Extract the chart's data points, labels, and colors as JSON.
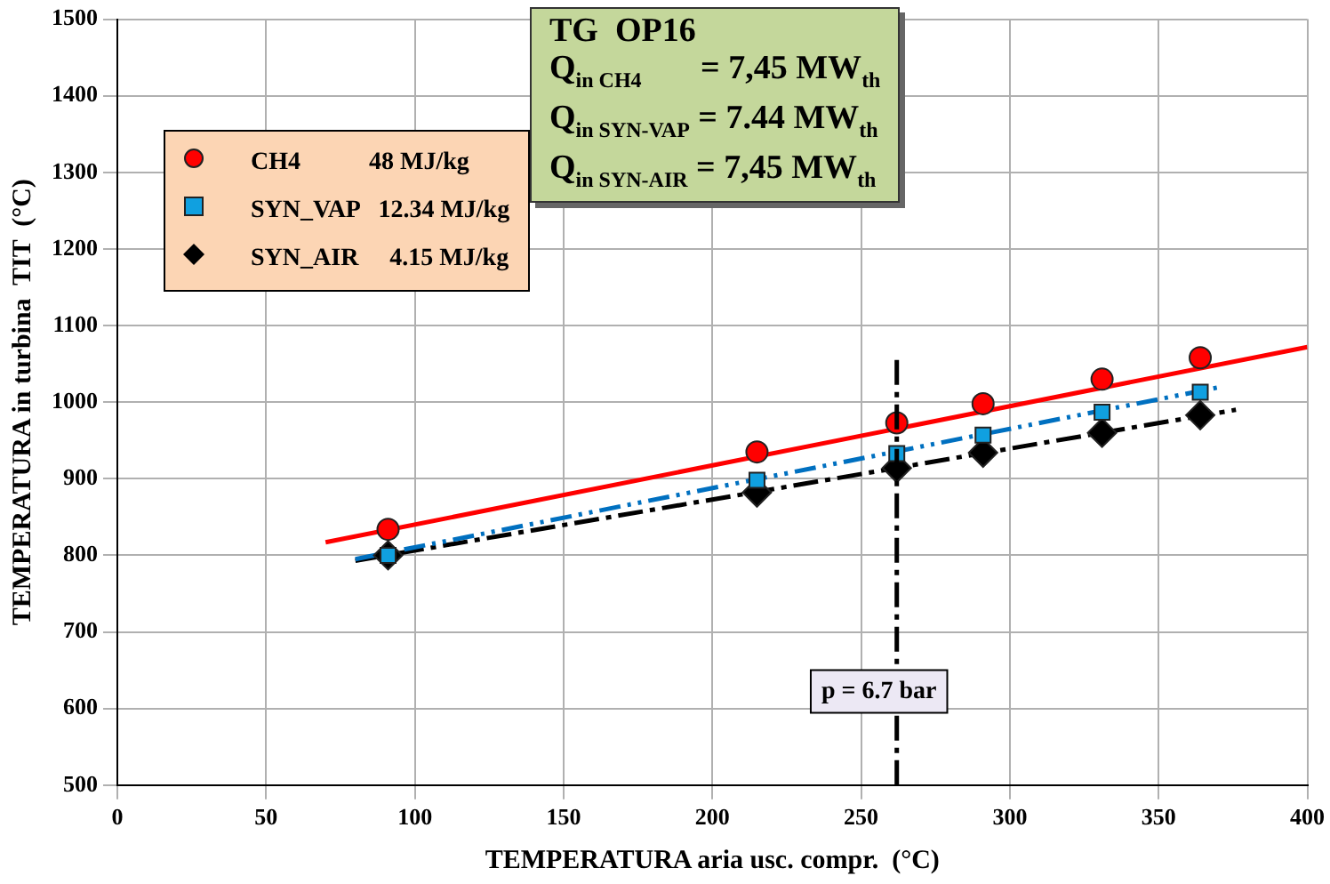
{
  "chart_data": {
    "type": "scatter",
    "xlabel": "TEMPERATURA aria usc. compr.  (°C)",
    "ylabel": "TEMPERATURA in turbina  TIT  (°C)",
    "xlim": [
      0,
      400
    ],
    "xticks": [
      0,
      50,
      100,
      150,
      200,
      250,
      300,
      350,
      400
    ],
    "ylim": [
      500,
      1500
    ],
    "yticks": [
      500,
      600,
      700,
      800,
      900,
      1000,
      1100,
      1200,
      1300,
      1400,
      1500
    ],
    "grid": true,
    "legend": "top left",
    "annotations": [
      "TG  OP16",
      "Q$_{in CH4}$       = 7,45 MW$_{th}$",
      "Q$_{in SYN-VAP}$ = 7.44 MW$_{th}$",
      "Q$_{in SYN-AIR}$ = 7,45 MW$_{th}$",
      {
        "text": "p = 6.7 bar",
        "x": 262,
        "y": 650
      }
    ],
    "ref_lines": [
      {
        "axis": "x",
        "value": 262,
        "color": "#000000",
        "line_style": "dashed"
      }
    ],
    "series": [
      {
        "name": "CH4           48 MJ/kg",
        "marker": "circle",
        "color": "#ff0000",
        "x": [
          91,
          215,
          262,
          291,
          331,
          364
        ],
        "values": [
          834,
          935,
          973,
          998,
          1030,
          1058
        ]
      },
      {
        "name": "SYN_VAP   12.34 MJ/kg",
        "marker": "square",
        "color": "#10a0e0",
        "x": [
          91,
          215,
          262,
          291,
          331,
          364
        ],
        "values": [
          800,
          898,
          933,
          957,
          987,
          1013
        ]
      },
      {
        "name": "SYN_AIR     4.15 MJ/kg",
        "marker": "diamond",
        "color": "#000000",
        "x": [
          91,
          215,
          262,
          291,
          331,
          364
        ],
        "values": [
          800,
          882,
          914,
          934,
          960,
          983
        ]
      },
      {
        "type": "line",
        "color": "#ff0000",
        "line_style": "solid",
        "x": [
          70,
          400
        ],
        "values": [
          817,
          1072
        ]
      },
      {
        "type": "line",
        "color": "#0070c0",
        "line_style": "dotted",
        "x": [
          80,
          371
        ],
        "values": [
          795,
          1020
        ]
      },
      {
        "type": "line",
        "color": "#000000",
        "line_style": "dashed",
        "x": [
          80,
          376
        ],
        "values": [
          793,
          990
        ]
      }
    ]
  }
}
